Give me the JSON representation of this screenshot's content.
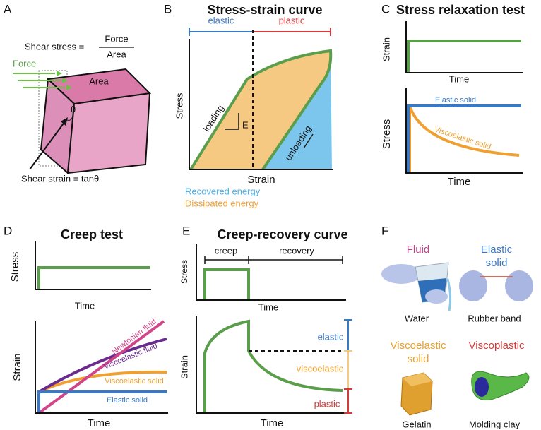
{
  "panel_a": {
    "label": "A",
    "shear_stress": "Shear stress =",
    "numerator": "Force",
    "denominator": "Area",
    "force": "Force",
    "area": "Area",
    "theta": "θ",
    "shear_strain": "Shear strain = tanθ"
  },
  "panel_b": {
    "label": "B",
    "title": "Stress-strain curve",
    "elastic": "elastic",
    "plastic": "plastic",
    "y_axis": "Stress",
    "x_axis": "Strain",
    "loading": "loading",
    "modulus": "E",
    "unloading": "unloading",
    "legend": [
      "Recovered energy",
      "Dissipated energy"
    ]
  },
  "panel_c": {
    "label": "C",
    "title": "Stress relaxation test",
    "top": {
      "y_axis": "Strain",
      "x_axis": "Time"
    },
    "bottom": {
      "y_axis": "Stress",
      "x_axis": "Time",
      "curves": [
        "Elastic solid",
        "Viscoelastic solid"
      ]
    }
  },
  "panel_d": {
    "label": "D",
    "title": "Creep test",
    "top": {
      "y_axis": "Stress",
      "x_axis": "Time"
    },
    "bottom": {
      "y_axis": "Strain",
      "x_axis": "Time",
      "curves": [
        "Newtonian fluid",
        "Viscoelastic fluid",
        "Viscoelastic solid",
        "Elastic solid"
      ]
    }
  },
  "panel_e": {
    "label": "E",
    "title": "Creep-recovery curve",
    "phases": [
      "creep",
      "recovery"
    ],
    "top": {
      "y_axis": "Stress",
      "x_axis": "Time"
    },
    "bottom": {
      "y_axis": "Strain",
      "x_axis": "Time",
      "components": [
        "elastic",
        "viscoelastic",
        "plastic"
      ]
    }
  },
  "panel_f": {
    "label": "F",
    "items": [
      {
        "title": [
          "Fluid"
        ],
        "caption": "Water"
      },
      {
        "title": [
          "Elastic",
          "solid"
        ],
        "caption": "Rubber band"
      },
      {
        "title": [
          "Viscoelastic",
          "solid"
        ],
        "caption": "Gelatin"
      },
      {
        "title": [
          "Viscoplastic"
        ],
        "caption": "Molding clay"
      }
    ]
  }
}
